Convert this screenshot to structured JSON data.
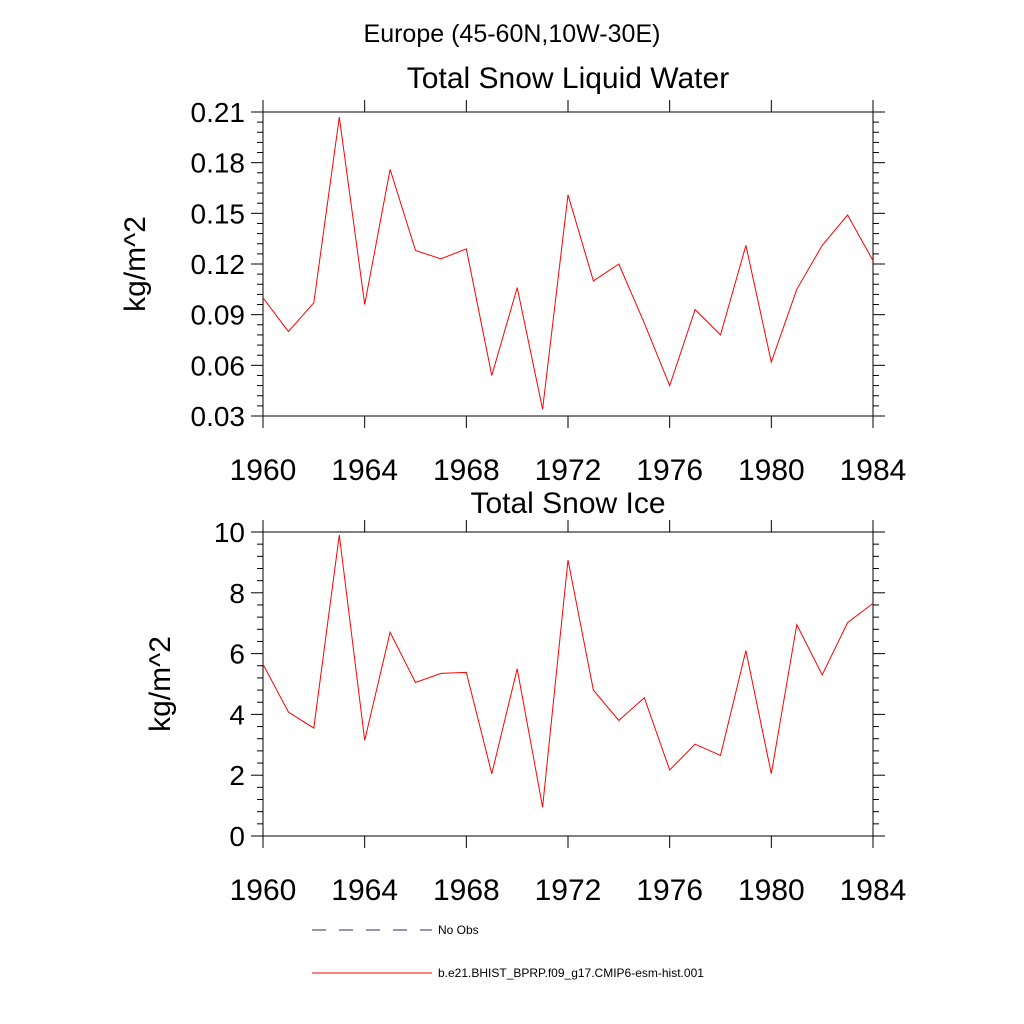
{
  "figure": {
    "suptitle": "Europe (45-60N,10W-30E)"
  },
  "chart_data": [
    {
      "type": "line",
      "title": "Total Snow Liquid Water",
      "ylabel": "kg/m^2",
      "xlim": [
        1960,
        1984
      ],
      "ylim": [
        0.03,
        0.21
      ],
      "xticks": [
        "1960",
        "1964",
        "1968",
        "1972",
        "1976",
        "1980",
        "1984"
      ],
      "yticks": [
        "0.03",
        "0.06",
        "0.09",
        "0.12",
        "0.15",
        "0.18",
        "0.21"
      ],
      "x": [
        1960,
        1961,
        1962,
        1963,
        1964,
        1965,
        1966,
        1967,
        1968,
        1969,
        1970,
        1971,
        1972,
        1973,
        1974,
        1975,
        1976,
        1977,
        1978,
        1979,
        1980,
        1981,
        1982,
        1983,
        1984
      ],
      "series": [
        {
          "name": "b.e21.BHIST_BPRP.f09_g17.CMIP6-esm-hist.001",
          "color": "#ff0000",
          "values": [
            0.1,
            0.08,
            0.097,
            0.207,
            0.096,
            0.176,
            0.128,
            0.123,
            0.129,
            0.054,
            0.106,
            0.034,
            0.161,
            0.11,
            0.12,
            0.085,
            0.048,
            0.093,
            0.078,
            0.131,
            0.062,
            0.105,
            0.131,
            0.149,
            0.122
          ]
        }
      ]
    },
    {
      "type": "line",
      "title": "Total Snow Ice",
      "ylabel": "kg/m^2",
      "xlim": [
        1960,
        1984
      ],
      "ylim": [
        0,
        10
      ],
      "xticks": [
        "1960",
        "1964",
        "1968",
        "1972",
        "1976",
        "1980",
        "1984"
      ],
      "yticks": [
        "0",
        "2",
        "4",
        "6",
        "8",
        "10"
      ],
      "x": [
        1960,
        1961,
        1962,
        1963,
        1964,
        1965,
        1966,
        1967,
        1968,
        1969,
        1970,
        1971,
        1972,
        1973,
        1974,
        1975,
        1976,
        1977,
        1978,
        1979,
        1980,
        1981,
        1982,
        1983,
        1984
      ],
      "series": [
        {
          "name": "b.e21.BHIST_BPRP.f09_g17.CMIP6-esm-hist.001",
          "color": "#ff0000",
          "values": [
            5.65,
            4.08,
            3.55,
            9.9,
            3.15,
            6.7,
            5.05,
            5.35,
            5.38,
            2.05,
            5.5,
            0.95,
            9.08,
            4.8,
            3.8,
            4.55,
            2.17,
            3.02,
            2.65,
            6.1,
            2.05,
            6.95,
            5.3,
            7.02,
            7.65
          ]
        }
      ]
    }
  ],
  "legend": {
    "items": [
      {
        "label": "No Obs",
        "style": "dashed",
        "color": "#2b2b6b"
      },
      {
        "label": "b.e21.BHIST_BPRP.f09_g17.CMIP6-esm-hist.001",
        "style": "solid",
        "color": "#ff0000"
      }
    ]
  }
}
